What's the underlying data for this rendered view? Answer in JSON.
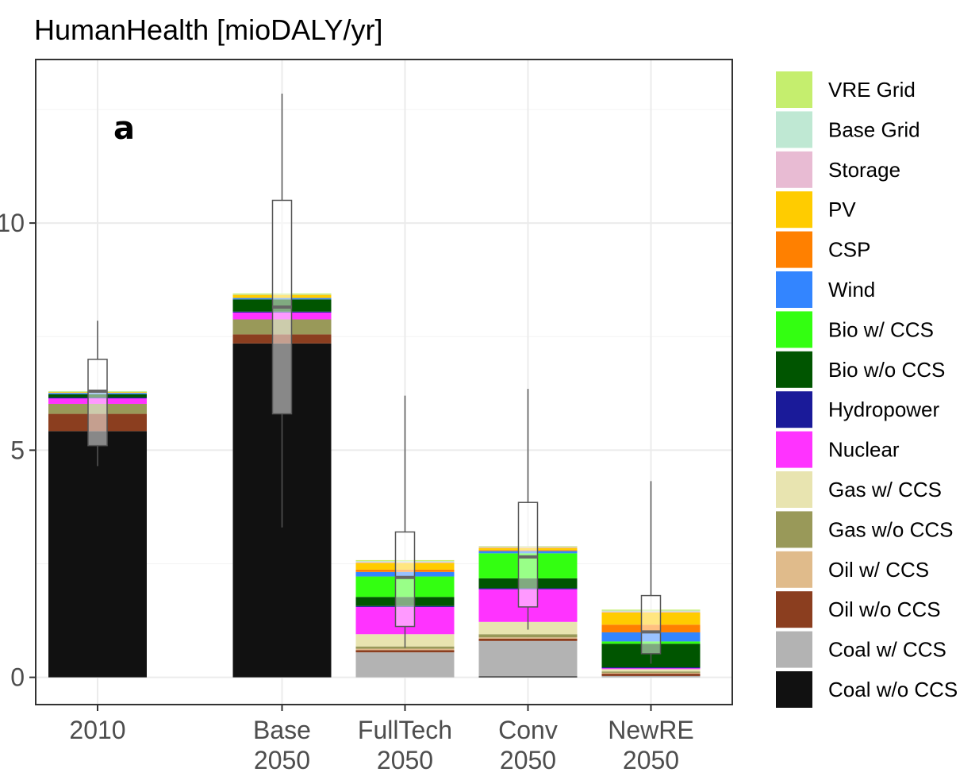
{
  "chart_data": {
    "type": "bar",
    "stacked": true,
    "title": "HumanHealth [mioDALY/yr]",
    "panel_label": "a",
    "xlabel": "",
    "ylabel": "",
    "ylim": [
      -0.6,
      13.6
    ],
    "y_ticks": [
      0,
      5,
      10
    ],
    "y_tick_labels": [
      "0",
      "5",
      "10"
    ],
    "grid": true,
    "legend_position": "right",
    "categories": [
      {
        "x": 0,
        "line1": "2010",
        "line2": ""
      },
      {
        "x": 1.5,
        "line1": "Base",
        "line2": "2050"
      },
      {
        "x": 2.5,
        "line1": "FullTech",
        "line2": "2050"
      },
      {
        "x": 3.5,
        "line1": "Conv",
        "line2": "2050"
      },
      {
        "x": 4.5,
        "line1": "NewRE",
        "line2": "2050"
      }
    ],
    "series": [
      {
        "name": "Coal w/o CCS",
        "color": "#111111",
        "values": [
          5.42,
          7.35,
          0.0,
          0.02,
          0.0
        ]
      },
      {
        "name": "Coal w/ CCS",
        "color": "#b3b3b3",
        "values": [
          0.0,
          0.0,
          0.55,
          0.78,
          0.03
        ]
      },
      {
        "name": "Oil w/o CCS",
        "color": "#8b3e1f",
        "values": [
          0.38,
          0.2,
          0.05,
          0.05,
          0.05
        ]
      },
      {
        "name": "Oil w/ CCS",
        "color": "#e0bb8b",
        "values": [
          0.0,
          0.0,
          0.03,
          0.03,
          0.02
        ]
      },
      {
        "name": "Gas w/o CCS",
        "color": "#999959",
        "values": [
          0.22,
          0.33,
          0.05,
          0.07,
          0.03
        ]
      },
      {
        "name": "Gas w/ CCS",
        "color": "#e8e4b0",
        "values": [
          0.0,
          0.0,
          0.27,
          0.27,
          0.05
        ]
      },
      {
        "name": "Nuclear",
        "color": "#ff33ff",
        "values": [
          0.12,
          0.15,
          0.6,
          0.72,
          0.02
        ]
      },
      {
        "name": "Hydropower",
        "color": "#1a1a99",
        "values": [
          0.02,
          0.02,
          0.02,
          0.02,
          0.02
        ]
      },
      {
        "name": "Bio w/o CCS",
        "color": "#005500",
        "values": [
          0.07,
          0.27,
          0.2,
          0.22,
          0.52
        ]
      },
      {
        "name": "Bio w/ CCS",
        "color": "#33ff11",
        "values": [
          0.0,
          0.0,
          0.45,
          0.55,
          0.05
        ]
      },
      {
        "name": "Wind",
        "color": "#3385ff",
        "values": [
          0.03,
          0.03,
          0.1,
          0.05,
          0.2
        ]
      },
      {
        "name": "CSP",
        "color": "#ff8000",
        "values": [
          0.0,
          0.0,
          0.05,
          0.02,
          0.17
        ]
      },
      {
        "name": "PV",
        "color": "#ffcc00",
        "values": [
          0.02,
          0.07,
          0.15,
          0.05,
          0.27
        ]
      },
      {
        "name": "Storage",
        "color": "#e8bbd3",
        "values": [
          0.0,
          0.0,
          0.02,
          0.02,
          0.02
        ]
      },
      {
        "name": "Base Grid",
        "color": "#bfe8d3",
        "values": [
          0.01,
          0.01,
          0.02,
          0.01,
          0.02
        ]
      },
      {
        "name": "VRE Grid",
        "color": "#c5ee6e",
        "values": [
          0.01,
          0.02,
          0.02,
          0.01,
          0.02
        ]
      }
    ],
    "boxplots": [
      {
        "x": 0,
        "min": 4.65,
        "q1": 5.1,
        "median": 6.3,
        "q3": 7.0,
        "max": 7.85
      },
      {
        "x": 1.5,
        "min": 3.3,
        "q1": 5.8,
        "median": 8.15,
        "q3": 10.5,
        "max": 12.85
      },
      {
        "x": 2.5,
        "min": 0.65,
        "q1": 1.12,
        "median": 2.2,
        "q3": 3.2,
        "max": 6.2
      },
      {
        "x": 3.5,
        "min": 1.05,
        "q1": 1.55,
        "median": 2.65,
        "q3": 3.85,
        "max": 6.35
      },
      {
        "x": 4.5,
        "min": 0.3,
        "q1": 0.52,
        "median": 1.0,
        "q3": 1.8,
        "max": 4.32
      }
    ]
  }
}
